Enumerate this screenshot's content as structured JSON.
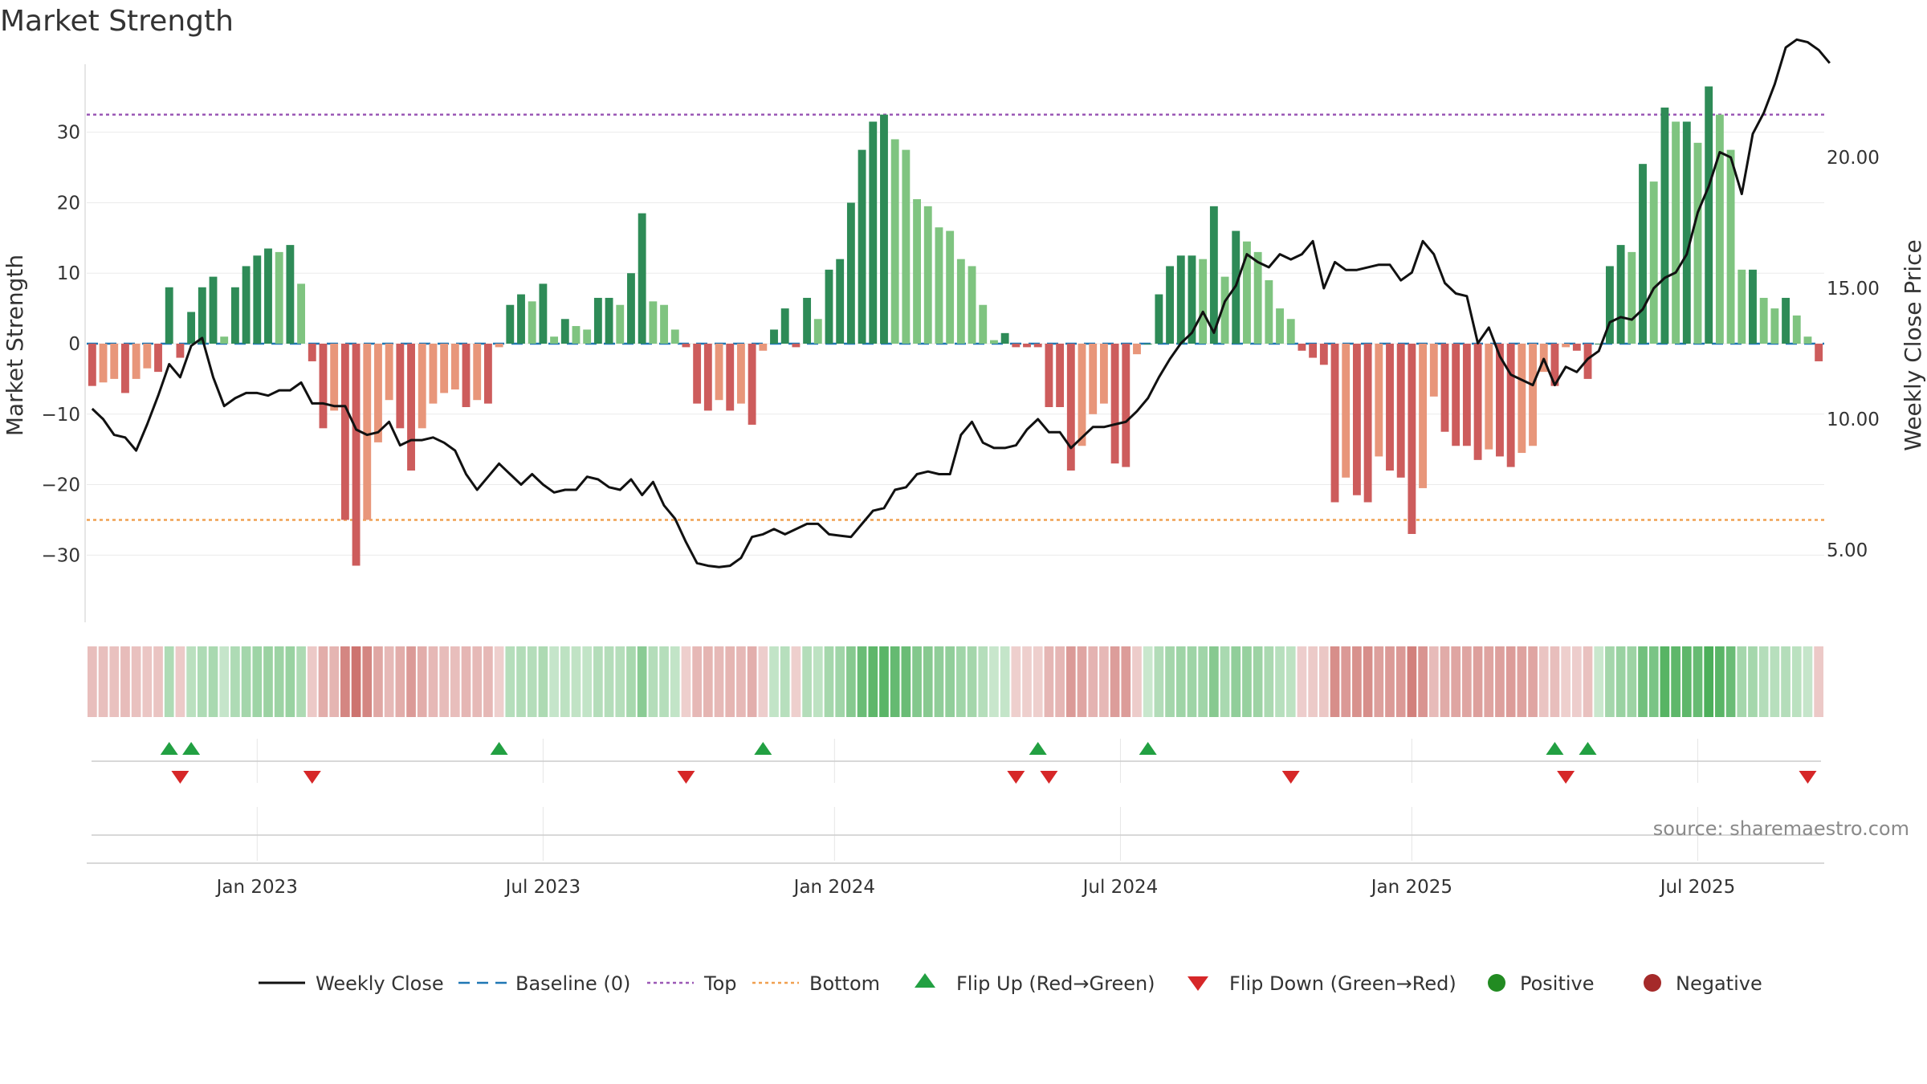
{
  "chart_data": {
    "type": "bar",
    "title": "Market Strength",
    "ylabel": "Market Strength",
    "y2label": "Weekly Close Price",
    "ylim": [
      -39,
      39
    ],
    "y2lim": [
      2.2,
      23.2
    ],
    "yticks": [
      30,
      20,
      10,
      0,
      -10,
      -20,
      -30
    ],
    "y2ticks": [
      "20.00",
      "15.00",
      "10.00",
      "5.00"
    ],
    "xticks": [
      {
        "label": "Jan 2023",
        "index": 15
      },
      {
        "label": "Jul 2023",
        "index": 41
      },
      {
        "label": "Jan 2024",
        "index": 67.5
      },
      {
        "label": "Jul 2024",
        "index": 93.5
      },
      {
        "label": "Jan 2025",
        "index": 120
      },
      {
        "label": "Jul 2025",
        "index": 146
      }
    ],
    "top_level": 32.5,
    "bottom_level": -25,
    "baseline": 0,
    "strength": [
      -6,
      -5.5,
      -5,
      -7,
      -5,
      -3.5,
      -4,
      8,
      -2,
      4.5,
      8,
      9.5,
      1,
      8,
      11,
      12.5,
      13.5,
      13,
      14,
      8.5,
      -2.5,
      -12,
      -9.5,
      -25,
      -31.5,
      -25,
      -14,
      -8,
      -12,
      -18,
      -12,
      -8.5,
      -7,
      -6.5,
      -9,
      -8,
      -8.5,
      -0.5,
      5.5,
      7,
      6,
      8.5,
      1,
      3.5,
      2.5,
      2,
      6.5,
      6.5,
      5.5,
      10,
      18.5,
      6,
      5.5,
      2,
      -0.5,
      -8.5,
      -9.5,
      -8,
      -9.5,
      -8.5,
      -11.5,
      -1,
      2,
      5,
      -0.5,
      6.5,
      3.5,
      10.5,
      12,
      20,
      27.5,
      31.5,
      32.5,
      29,
      27.5,
      20.5,
      19.5,
      16.5,
      16,
      12,
      11,
      5.5,
      0.5,
      1.5,
      -0.5,
      -0.5,
      -0.5,
      -9,
      -9,
      -18,
      -14.5,
      -10,
      -8.5,
      -17,
      -17.5,
      -1.5,
      0,
      7,
      11,
      12.5,
      12.5,
      12,
      19.5,
      9.5,
      16,
      14.5,
      13,
      9,
      5,
      3.5,
      -1,
      -2,
      -3,
      -22.5,
      -19,
      -21.5,
      -22.5,
      -16,
      -18,
      -19,
      -27,
      -20.5,
      -7.5,
      -12.5,
      -14.5,
      -14.5,
      -16.5,
      -15,
      -16,
      -17.5,
      -15.5,
      -14.5,
      -4,
      -6,
      -0.5,
      -1,
      -5,
      0,
      11,
      14,
      13,
      25.5,
      23,
      33.5,
      31.5,
      31.5,
      28.5,
      36.5,
      32.5,
      27.5,
      10.5,
      10.5,
      6.5,
      5,
      6.5,
      4,
      1,
      -2.5
    ],
    "close": [
      10.4,
      10,
      9.4,
      9.3,
      8.8,
      9.8,
      10.9,
      12.1,
      11.6,
      12.8,
      13.1,
      11.6,
      10.5,
      10.8,
      11.0,
      11.0,
      10.9,
      11.1,
      11.1,
      11.4,
      10.6,
      10.6,
      10.5,
      10.5,
      9.6,
      9.4,
      9.5,
      9.9,
      9.0,
      9.2,
      9.2,
      9.3,
      9.1,
      8.8,
      7.9,
      7.3,
      7.8,
      8.3,
      7.9,
      7.5,
      7.9,
      7.5,
      7.2,
      7.3,
      7.3,
      7.8,
      7.7,
      7.4,
      7.3,
      7.7,
      7.1,
      7.6,
      6.7,
      6.2,
      5.3,
      4.5,
      4.4,
      4.35,
      4.4,
      4.7,
      5.5,
      5.6,
      5.8,
      5.6,
      5.8,
      6.0,
      6.0,
      5.6,
      5.55,
      5.5,
      6.0,
      6.5,
      6.6,
      7.3,
      7.4,
      7.9,
      8.0,
      7.9,
      7.9,
      9.4,
      9.9,
      9.1,
      8.9,
      8.9,
      9.0,
      9.6,
      10.0,
      9.5,
      9.5,
      8.9,
      9.3,
      9.7,
      9.7,
      9.8,
      9.9,
      10.3,
      10.8,
      11.6,
      12.3,
      12.9,
      13.3,
      14.1,
      13.3,
      14.5,
      15.1,
      16.3,
      16.0,
      15.8,
      16.3,
      16.1,
      16.3,
      16.8,
      15.0,
      16.0,
      15.7,
      15.7,
      15.8,
      15.9,
      15.9,
      15.3,
      15.6,
      16.8,
      16.3,
      15.2,
      14.8,
      14.7,
      12.9,
      13.5,
      12.4,
      11.7,
      11.5,
      11.3,
      12.3,
      11.3,
      12.0,
      11.8,
      12.3,
      12.6,
      13.7,
      13.9,
      13.8,
      14.2,
      15.0,
      15.4,
      15.6,
      16.3,
      17.9,
      18.9,
      20.2,
      20.0,
      18.6,
      20.9,
      21.7,
      22.8,
      24.2,
      24.5,
      24.4,
      24.1,
      23.6
    ],
    "flip_up": [
      7,
      9,
      37,
      61,
      86,
      96,
      133,
      136
    ],
    "flip_down": [
      8,
      20,
      54,
      84,
      87,
      109,
      134,
      156
    ],
    "legend": [
      {
        "label": "Weekly Close",
        "kind": "line"
      },
      {
        "label": "Baseline (0)",
        "kind": "dash"
      },
      {
        "label": "Top",
        "kind": "dot-purple"
      },
      {
        "label": "Bottom",
        "kind": "dot-orange"
      },
      {
        "label": "Flip Up (Red→Green)",
        "kind": "tri-up"
      },
      {
        "label": "Flip Down (Green→Red)",
        "kind": "tri-down"
      },
      {
        "label": "Positive",
        "kind": "circle-green"
      },
      {
        "label": "Negative",
        "kind": "circle-red"
      }
    ],
    "legend_placement": "bottom",
    "grid": true
  },
  "source": "source: sharemaestro.com",
  "colors": {
    "pos_strong": "#2e8b57",
    "pos_light": "#7fc480",
    "neg_strong": "#cd5c5c",
    "neg_light": "#e8967a",
    "top_line": "#9b59b6",
    "bottom_line": "#f0a050",
    "baseline": "#1f77b4",
    "up_marker": "#22a042",
    "down_marker": "#d62728",
    "positive_dot": "#228b22",
    "negative_dot": "#a52a2a"
  }
}
